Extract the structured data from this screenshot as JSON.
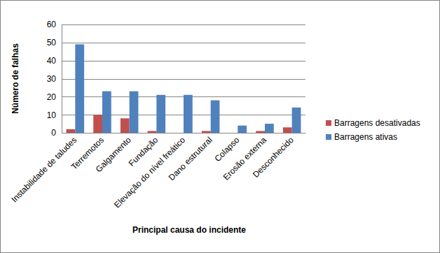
{
  "chart_data": {
    "type": "bar",
    "categories": [
      "Instabilidade de taludes",
      "Terremotos",
      "Galgamento",
      "Fundação",
      "Elevação do nível freático",
      "Dano estrutural",
      "Colapso",
      "Erosão externa",
      "Desconhecido"
    ],
    "series": [
      {
        "name": "Barragens desativadas",
        "color": "#c0504d",
        "values": [
          2,
          10,
          8,
          1,
          0,
          1,
          0,
          1,
          3
        ]
      },
      {
        "name": "Barragens ativas",
        "color": "#4f81bd",
        "values": [
          49,
          23,
          23,
          21,
          21,
          18,
          4,
          5,
          14
        ]
      }
    ],
    "x_label": "Principal causa do incidente",
    "y_label": "Número de falhas",
    "ylim": [
      0,
      60
    ],
    "yticks": [
      0,
      10,
      20,
      30,
      40,
      50,
      60
    ],
    "grid": true,
    "legend": "right"
  }
}
